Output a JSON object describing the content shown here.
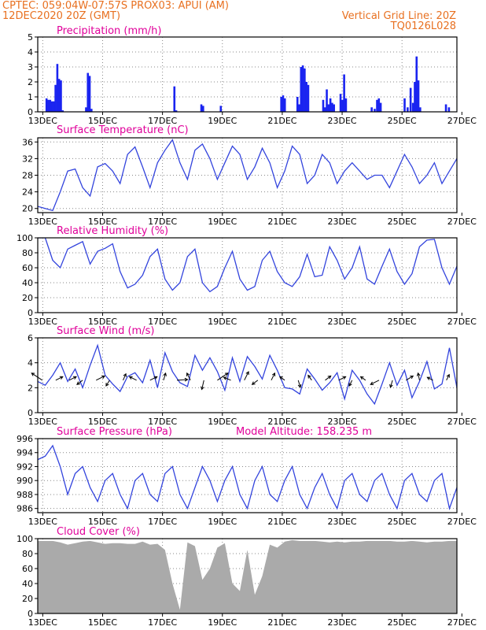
{
  "header": {
    "line1_left": "CPTEC:   059:04W-07:57S   PROX03: APUI (AM)",
    "line2_left": "12DEC2020 20Z (GMT)",
    "line2_right": "Vertical Grid Line: 20Z",
    "line3_right": "TQ0126L028"
  },
  "colors": {
    "header": "#e87020",
    "title": "#e0009a",
    "series": "#3344dd",
    "bars": "#1a24f0",
    "cloud": "#aaaaaa",
    "grid": "#888888"
  },
  "x_ticks": [
    "13DEC",
    "15DEC",
    "17DEC",
    "19DEC",
    "21DEC",
    "23DEC",
    "25DEC",
    "27DEC"
  ],
  "chart_data": [
    {
      "type": "bar",
      "title": "Precipitation (mm/h)",
      "ylim": [
        0,
        5
      ],
      "yticks": [
        "0",
        "1",
        "2",
        "3",
        "4",
        "5"
      ],
      "x_unit": "days since 12DEC2020 20Z",
      "points": [
        [
          0.26,
          0.9
        ],
        [
          0.32,
          0.8
        ],
        [
          0.38,
          0.8
        ],
        [
          0.44,
          0.7
        ],
        [
          0.5,
          0.7
        ],
        [
          0.56,
          1.8
        ],
        [
          0.62,
          3.2
        ],
        [
          0.68,
          2.2
        ],
        [
          0.74,
          2.1
        ],
        [
          0.8,
          0.1
        ],
        [
          1.58,
          0.3
        ],
        [
          1.64,
          2.6
        ],
        [
          1.7,
          2.4
        ],
        [
          1.76,
          0.2
        ],
        [
          4.53,
          1.7
        ],
        [
          4.59,
          0.1
        ],
        [
          5.43,
          0.5
        ],
        [
          5.49,
          0.4
        ],
        [
          6.08,
          0.4
        ],
        [
          8.1,
          1.0
        ],
        [
          8.16,
          1.1
        ],
        [
          8.22,
          0.9
        ],
        [
          8.64,
          1.0
        ],
        [
          8.7,
          0.5
        ],
        [
          8.76,
          3.0
        ],
        [
          8.82,
          3.1
        ],
        [
          8.88,
          2.9
        ],
        [
          8.94,
          2.0
        ],
        [
          9.0,
          1.8
        ],
        [
          9.5,
          0.8
        ],
        [
          9.56,
          0.3
        ],
        [
          9.62,
          1.5
        ],
        [
          9.68,
          0.5
        ],
        [
          9.74,
          0.9
        ],
        [
          9.8,
          0.6
        ],
        [
          9.86,
          0.5
        ],
        [
          10.08,
          1.2
        ],
        [
          10.14,
          0.8
        ],
        [
          10.2,
          2.5
        ],
        [
          10.26,
          0.9
        ],
        [
          11.12,
          0.3
        ],
        [
          11.22,
          0.2
        ],
        [
          11.3,
          0.8
        ],
        [
          11.36,
          0.9
        ],
        [
          11.42,
          0.6
        ],
        [
          12.22,
          0.9
        ],
        [
          12.32,
          0.3
        ],
        [
          12.42,
          1.6
        ],
        [
          12.5,
          0.6
        ],
        [
          12.56,
          2.0
        ],
        [
          12.62,
          3.7
        ],
        [
          12.68,
          2.1
        ],
        [
          12.74,
          0.3
        ],
        [
          13.6,
          0.5
        ],
        [
          13.7,
          0.3
        ]
      ]
    },
    {
      "type": "line",
      "title": "Surface Temperature (nC)",
      "ylim": [
        19,
        37
      ],
      "yticks": [
        "20",
        "24",
        "28",
        "32",
        "36"
      ],
      "x": [
        0,
        0.25,
        0.5,
        0.75,
        1.0,
        1.25,
        1.5,
        1.75,
        2.0,
        2.25,
        2.5,
        2.75,
        3.0,
        3.25,
        3.5,
        3.75,
        4.0,
        4.25,
        4.5,
        4.75,
        5.0,
        5.25,
        5.5,
        5.75,
        6.0,
        6.25,
        6.5,
        6.75,
        7.0,
        7.25,
        7.5,
        7.75,
        8.0,
        8.25,
        8.5,
        8.75,
        9.0,
        9.25,
        9.5,
        9.75,
        10.0,
        10.25,
        10.5,
        10.75,
        11.0,
        11.25,
        11.5,
        11.75,
        12.0,
        12.25,
        12.5,
        12.75,
        13.0,
        13.25,
        13.5,
        13.75,
        14.0
      ],
      "values": [
        20.5,
        20,
        19.5,
        24,
        29,
        29.5,
        25,
        23,
        30,
        30.8,
        29,
        26,
        33,
        34.8,
        30,
        25,
        31,
        34,
        36.5,
        31,
        27,
        34,
        35.5,
        32,
        27,
        31,
        35,
        33,
        27,
        30,
        34.5,
        31,
        25,
        29,
        35,
        33,
        26,
        28,
        33,
        31,
        26,
        29,
        31,
        29,
        27,
        28,
        28,
        25,
        29,
        33,
        30,
        26,
        28,
        31,
        26,
        29,
        32
      ]
    },
    {
      "type": "line",
      "title": "Relative Humidity (%)",
      "ylim": [
        0,
        100
      ],
      "yticks": [
        "0",
        "20",
        "40",
        "60",
        "80",
        "100"
      ],
      "x": [
        0,
        0.25,
        0.5,
        0.75,
        1.0,
        1.25,
        1.5,
        1.75,
        2.0,
        2.25,
        2.5,
        2.75,
        3.0,
        3.25,
        3.5,
        3.75,
        4.0,
        4.25,
        4.5,
        4.75,
        5.0,
        5.25,
        5.5,
        5.75,
        6.0,
        6.25,
        6.5,
        6.75,
        7.0,
        7.25,
        7.5,
        7.75,
        8.0,
        8.25,
        8.5,
        8.75,
        9.0,
        9.25,
        9.5,
        9.75,
        10.0,
        10.25,
        10.5,
        10.75,
        11.0,
        11.25,
        11.5,
        11.75,
        12.0,
        12.25,
        12.5,
        12.75,
        13.0,
        13.25,
        13.5,
        13.75,
        14.0
      ],
      "values": [
        100,
        100,
        70,
        60,
        85,
        90,
        95,
        65,
        82,
        86,
        92,
        55,
        33,
        38,
        50,
        75,
        85,
        45,
        30,
        40,
        75,
        85,
        40,
        28,
        35,
        60,
        82,
        45,
        30,
        35,
        70,
        82,
        55,
        40,
        35,
        48,
        78,
        48,
        50,
        88,
        70,
        45,
        60,
        88,
        45,
        38,
        62,
        85,
        55,
        38,
        52,
        88,
        97,
        98,
        60,
        38,
        62
      ]
    },
    {
      "type": "line",
      "title": "Surface Wind (m/s)",
      "ylim": [
        0,
        6
      ],
      "yticks": [
        "0",
        "2",
        "4",
        "6"
      ],
      "x": [
        0,
        0.25,
        0.5,
        0.75,
        1.0,
        1.25,
        1.5,
        1.75,
        2.0,
        2.25,
        2.5,
        2.75,
        3.0,
        3.25,
        3.5,
        3.75,
        4.0,
        4.25,
        4.5,
        4.75,
        5.0,
        5.25,
        5.5,
        5.75,
        6.0,
        6.25,
        6.5,
        6.75,
        7.0,
        7.25,
        7.5,
        7.75,
        8.0,
        8.25,
        8.5,
        8.75,
        9.0,
        9.25,
        9.5,
        9.75,
        10.0,
        10.25,
        10.5,
        10.75,
        11.0,
        11.25,
        11.5,
        11.75,
        12.0,
        12.25,
        12.5,
        12.75,
        13.0,
        13.25,
        13.5,
        13.75,
        14.0
      ],
      "values": [
        2.5,
        2.2,
        3.0,
        4.0,
        2.5,
        3.5,
        2.0,
        3.8,
        5.4,
        3.0,
        2.3,
        1.7,
        2.9,
        3.2,
        2.4,
        4.2,
        2.0,
        4.8,
        3.3,
        2.4,
        2.1,
        4.6,
        3.4,
        4.4,
        3.3,
        1.8,
        4.4,
        2.5,
        4.5,
        3.7,
        2.7,
        4.6,
        3.4,
        2.0,
        1.9,
        1.5,
        3.5,
        2.7,
        1.8,
        2.4,
        3.2,
        1.1,
        3.4,
        2.6,
        1.5,
        0.7,
        2.3,
        4.0,
        2.2,
        3.4,
        1.2,
        2.5,
        4.1,
        1.9,
        2.3,
        5.2,
        2.0
      ],
      "arrows_u": [
        -1.5,
        1,
        1,
        -0.8,
        1.2,
        -0.5,
        0.4,
        -1,
        1,
        0.3,
        1.5,
        -0.5,
        -0.3,
        1.5,
        -1,
        0.6,
        -0.8,
        0.5,
        -0.7,
        0.3,
        -0.5,
        0.8,
        1,
        -0.4,
        -0.7,
        -1.2,
        -0.3,
        1,
        -0.2,
        -0.8,
        0.4
      ],
      "arrows_v": [
        1,
        0.5,
        0.5,
        -0.6,
        0.6,
        -0.8,
        0.9,
        0.5,
        0.5,
        1,
        0.1,
        1,
        -1.3,
        1,
        0.4,
        1.2,
        -0.6,
        1,
        0.5,
        -1,
        0.7,
        0.6,
        0.5,
        -0.8,
        0.5,
        -0.6,
        -1,
        0.6,
        1,
        0.4,
        0.8
      ]
    },
    {
      "type": "line",
      "title": "Surface Pressure (hPa)",
      "annotation": "Model Altitude: 158.235 m",
      "ylim": [
        985.4,
        996
      ],
      "yticks": [
        "986",
        "988",
        "990",
        "992",
        "994",
        "996"
      ],
      "x": [
        0,
        0.25,
        0.5,
        0.75,
        1.0,
        1.25,
        1.5,
        1.75,
        2.0,
        2.25,
        2.5,
        2.75,
        3.0,
        3.25,
        3.5,
        3.75,
        4.0,
        4.25,
        4.5,
        4.75,
        5.0,
        5.25,
        5.5,
        5.75,
        6.0,
        6.25,
        6.5,
        6.75,
        7.0,
        7.25,
        7.5,
        7.75,
        8.0,
        8.25,
        8.5,
        8.75,
        9.0,
        9.25,
        9.5,
        9.75,
        10.0,
        10.25,
        10.5,
        10.75,
        11.0,
        11.25,
        11.5,
        11.75,
        12.0,
        12.25,
        12.5,
        12.75,
        13.0,
        13.25,
        13.5,
        13.75,
        14.0
      ],
      "values": [
        993,
        993.5,
        995,
        992,
        988,
        991,
        992,
        989,
        987,
        990,
        991,
        988,
        986,
        990,
        991,
        988,
        987,
        991,
        992,
        988,
        986,
        989,
        992,
        990,
        987,
        990,
        992,
        988,
        986,
        990,
        992,
        988,
        987,
        990,
        992,
        988,
        986,
        989,
        991,
        988,
        986,
        990,
        991,
        988,
        987,
        990,
        991,
        988,
        986,
        990,
        991,
        988,
        987,
        990,
        991,
        986,
        989
      ]
    },
    {
      "type": "area",
      "title": "Cloud Cover (%)",
      "ylim": [
        0,
        100
      ],
      "yticks": [
        "0",
        "20",
        "40",
        "60",
        "80",
        "100"
      ],
      "x": [
        0,
        0.25,
        0.5,
        0.75,
        1.0,
        1.25,
        1.5,
        1.75,
        2.0,
        2.25,
        2.5,
        2.75,
        3.0,
        3.25,
        3.5,
        3.75,
        4.0,
        4.25,
        4.5,
        4.75,
        5.0,
        5.25,
        5.5,
        5.75,
        6.0,
        6.25,
        6.5,
        6.75,
        7.0,
        7.25,
        7.5,
        7.75,
        8.0,
        8.25,
        8.5,
        8.75,
        9.0,
        9.25,
        9.5,
        9.75,
        10.0,
        10.25,
        10.5,
        10.75,
        11.0,
        11.25,
        11.5,
        11.75,
        12.0,
        12.25,
        12.5,
        12.75,
        13.0,
        13.25,
        13.5,
        13.75,
        14.0
      ],
      "values": [
        97,
        97,
        97,
        95,
        92,
        94,
        96,
        97,
        95,
        93,
        94,
        94,
        93,
        93,
        96,
        92,
        93,
        85,
        40,
        5,
        95,
        90,
        45,
        60,
        88,
        94,
        40,
        30,
        85,
        25,
        50,
        92,
        88,
        96,
        98,
        97,
        97,
        97,
        96,
        95,
        96,
        95,
        96,
        96,
        97,
        97,
        97,
        97,
        96,
        96,
        97,
        96,
        95,
        96,
        96,
        97,
        97
      ]
    }
  ]
}
